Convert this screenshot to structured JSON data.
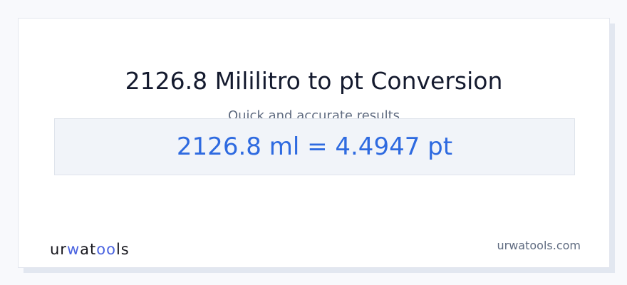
{
  "title": "2126.8 Mililitro to pt Conversion",
  "subtitle": "Quick and accurate results",
  "result": "2126.8 ml = 4.4947 pt",
  "logo": {
    "text": "urwatools",
    "parts": [
      "ur",
      "w",
      "a",
      "t",
      "oo",
      "ls"
    ]
  },
  "site": "urwatools.com",
  "colors": {
    "accent": "#2e6ae0",
    "logo_accent": "#4a63e0"
  }
}
